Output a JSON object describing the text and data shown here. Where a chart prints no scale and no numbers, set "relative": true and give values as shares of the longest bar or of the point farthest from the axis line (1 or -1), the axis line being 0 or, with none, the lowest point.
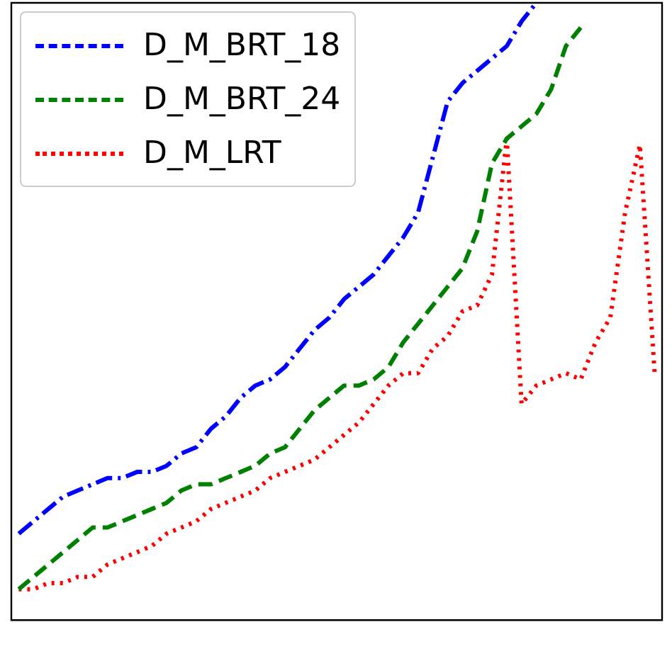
{
  "chart_data": {
    "type": "line",
    "relative": true,
    "categories": [
      null,
      null,
      null,
      null,
      null,
      null,
      null,
      null,
      null,
      null,
      null,
      null,
      null,
      null,
      null,
      null,
      null,
      null,
      null,
      null,
      null,
      null,
      null,
      null,
      null,
      null,
      null,
      null,
      null,
      null,
      null,
      null,
      null,
      null,
      null,
      null,
      null,
      null,
      null,
      null,
      null,
      null,
      null,
      null
    ],
    "legend": "top left",
    "grid": false,
    "marker": "none",
    "series": [
      {
        "name": "D_M_BRT_18",
        "color": "#0000ff",
        "line_style": "dashdot",
        "values": [
          0.14,
          0.16,
          0.18,
          0.2,
          0.21,
          0.22,
          0.23,
          0.23,
          0.24,
          0.24,
          0.25,
          0.27,
          0.28,
          0.31,
          0.33,
          0.36,
          0.38,
          0.39,
          0.41,
          0.44,
          0.47,
          0.49,
          0.52,
          0.54,
          0.56,
          0.59,
          0.62,
          0.66,
          0.75,
          0.84,
          0.87,
          0.89,
          0.91,
          0.93,
          0.97,
          1,
          null,
          null,
          null,
          null,
          null,
          null,
          null,
          null
        ]
      },
      {
        "name": "D_M_BRT_24",
        "color": "#008000",
        "line_style": "dashed",
        "values": [
          0.05,
          0.07,
          0.09,
          0.11,
          0.13,
          0.15,
          0.15,
          0.16,
          0.17,
          0.18,
          0.19,
          0.21,
          0.22,
          0.22,
          0.23,
          0.24,
          0.25,
          0.27,
          0.28,
          0.31,
          0.34,
          0.36,
          0.38,
          0.38,
          0.39,
          0.41,
          0.45,
          0.48,
          0.51,
          0.54,
          0.57,
          0.63,
          0.74,
          0.78,
          0.8,
          0.82,
          0.86,
          0.93,
          0.96,
          null,
          null,
          null,
          null,
          null
        ]
      },
      {
        "name": "D_M_LRT",
        "color": "#ff0000",
        "line_style": "dotted",
        "values": [
          0.05,
          0.05,
          0.06,
          0.06,
          0.07,
          0.07,
          0.09,
          0.1,
          0.11,
          0.12,
          0.14,
          0.15,
          0.16,
          0.18,
          0.19,
          0.2,
          0.21,
          0.23,
          0.24,
          0.25,
          0.26,
          0.28,
          0.3,
          0.32,
          0.35,
          0.38,
          0.4,
          0.4,
          0.44,
          0.46,
          0.5,
          0.51,
          0.56,
          0.78,
          0.35,
          0.38,
          0.39,
          0.4,
          0.39,
          0.45,
          0.49,
          0.66,
          0.77,
          0.4
        ]
      }
    ]
  }
}
